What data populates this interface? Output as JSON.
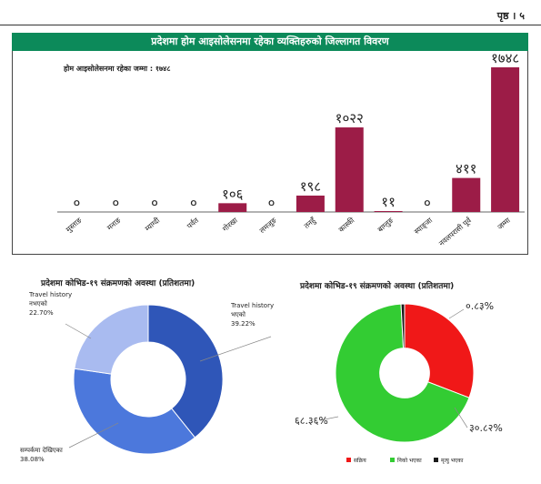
{
  "header": {
    "page_number": "पृष्ठ । ५"
  },
  "banner": {
    "title": "प्रदेशमा होम आइसोलेसनमा रहेका व्यक्तिहरुको जिल्लागत विवरण"
  },
  "chart_data": [
    {
      "type": "bar",
      "title": "प्रदेशमा होम आइसोलेसनमा रहेका व्यक्तिहरुको जिल्लागत विवरण",
      "annotation": "होम आइसोलेसनमा रहेका जम्मा : १७४८",
      "categories": [
        "मुस्ताङ",
        "मनाङ",
        "म्याग्दी",
        "पर्वत",
        "गोरखा",
        "लमजुङ",
        "तनहुँ",
        "कास्की",
        "बाग्लुङ",
        "स्याङ्जा",
        "नवलपरासी पूर्व",
        "जम्मा"
      ],
      "values": [
        0,
        0,
        0,
        0,
        106,
        0,
        198,
        1022,
        11,
        0,
        411,
        1748
      ],
      "value_labels": [
        "०",
        "०",
        "०",
        "०",
        "१०६",
        "०",
        "१९८",
        "१०२२",
        "११",
        "०",
        "४११",
        "१७४८"
      ],
      "ylim": [
        0,
        1748
      ],
      "grid": false,
      "color": "#9c1c47"
    },
    {
      "type": "pie",
      "title": "प्रदेशमा कोभिड-१९ संक्रमणको अवस्था (प्रतिशतमा)",
      "hole": 0.5,
      "slices": [
        {
          "label_lines": [
            "Travel history",
            "भएको"
          ],
          "pct": "39.22%",
          "value": 39.22,
          "color": "#2f56b8"
        },
        {
          "label_lines": [
            "सम्पर्कमा देखिएका"
          ],
          "pct": "38.08%",
          "value": 38.08,
          "color": "#4c78dc"
        },
        {
          "label_lines": [
            "Travel history",
            "नभएको"
          ],
          "pct": "22.70%",
          "value": 22.7,
          "color": "#a9bbf0"
        }
      ]
    },
    {
      "type": "pie",
      "title": "प्रदेशमा कोभिड-१९ संक्रमणको अवस्था (प्रतिशतमा)",
      "hole": 0.36,
      "slices": [
        {
          "legend": "सक्रिय",
          "pct": "३०.८२%",
          "value": 30.82,
          "color": "#f01818"
        },
        {
          "legend": "निको भएका",
          "pct": "६८.३६%",
          "value": 68.36,
          "color": "#33cc33"
        },
        {
          "legend": "मृत्यु भएका",
          "pct": "०.८३%",
          "value": 0.83,
          "color": "#1a1a1a"
        }
      ]
    }
  ]
}
